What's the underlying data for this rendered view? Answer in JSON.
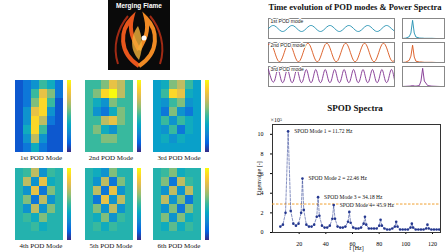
{
  "flame_panel": {
    "title": "Merging Flame"
  },
  "pod_modes": {
    "color_range": [
      0,
      1
    ],
    "tick_labels": false,
    "modes": [
      {
        "label": "1st POD Mode",
        "cells": [
          [
            0.1,
            0.2,
            0.3,
            0.5,
            0.4,
            0.2
          ],
          [
            0.1,
            0.2,
            0.5,
            0.8,
            0.6,
            0.2
          ],
          [
            0.1,
            0.2,
            0.6,
            0.9,
            0.5,
            0.1
          ],
          [
            0.1,
            0.3,
            0.8,
            0.9,
            0.3,
            0.1
          ],
          [
            0.1,
            0.3,
            0.9,
            0.7,
            0.2,
            0.1
          ],
          [
            0.1,
            0.4,
            0.9,
            0.5,
            0.1,
            0.1
          ],
          [
            0.1,
            0.3,
            0.7,
            0.3,
            0.1,
            0.1
          ],
          [
            0.1,
            0.2,
            0.4,
            0.2,
            0.1,
            0.1
          ]
        ]
      },
      {
        "label": "2nd POD Mode",
        "cells": [
          [
            0.5,
            0.5,
            0.6,
            0.8,
            0.7,
            0.5
          ],
          [
            0.5,
            0.6,
            0.9,
            1.0,
            0.7,
            0.5
          ],
          [
            0.5,
            0.4,
            0.3,
            0.6,
            0.5,
            0.5
          ],
          [
            0.5,
            0.3,
            0.2,
            0.4,
            0.6,
            0.5
          ],
          [
            0.5,
            0.5,
            0.7,
            0.8,
            0.6,
            0.5
          ],
          [
            0.5,
            0.6,
            0.4,
            0.3,
            0.5,
            0.5
          ],
          [
            0.5,
            0.5,
            0.6,
            0.6,
            0.5,
            0.5
          ],
          [
            0.5,
            0.5,
            0.5,
            0.5,
            0.5,
            0.5
          ]
        ]
      },
      {
        "label": "3rd POD Mode",
        "cells": [
          [
            0.35,
            0.4,
            0.6,
            0.7,
            0.5,
            0.35
          ],
          [
            0.35,
            0.5,
            0.9,
            0.8,
            0.4,
            0.35
          ],
          [
            0.35,
            0.3,
            0.5,
            0.6,
            0.3,
            0.35
          ],
          [
            0.35,
            0.2,
            0.6,
            0.3,
            0.2,
            0.35
          ],
          [
            0.35,
            0.5,
            0.3,
            0.5,
            0.4,
            0.35
          ],
          [
            0.35,
            0.3,
            0.5,
            0.2,
            0.4,
            0.35
          ],
          [
            0.35,
            0.4,
            0.3,
            0.4,
            0.35,
            0.35
          ],
          [
            0.35,
            0.35,
            0.35,
            0.35,
            0.35,
            0.35
          ]
        ]
      },
      {
        "label": "4th POD Mode",
        "cells": [
          [
            0.45,
            0.5,
            0.7,
            0.3,
            0.5,
            0.45
          ],
          [
            0.45,
            0.7,
            0.3,
            0.8,
            0.4,
            0.45
          ],
          [
            0.45,
            0.3,
            0.8,
            0.2,
            0.6,
            0.45
          ],
          [
            0.45,
            0.6,
            0.2,
            0.7,
            0.3,
            0.45
          ],
          [
            0.45,
            0.3,
            0.7,
            0.3,
            0.6,
            0.45
          ],
          [
            0.45,
            0.5,
            0.4,
            0.6,
            0.45,
            0.45
          ],
          [
            0.45,
            0.45,
            0.5,
            0.4,
            0.45,
            0.45
          ],
          [
            0.45,
            0.45,
            0.45,
            0.45,
            0.45,
            0.45
          ]
        ]
      },
      {
        "label": "5th POD Mode",
        "cells": [
          [
            0.45,
            0.4,
            0.3,
            0.6,
            0.45,
            0.45
          ],
          [
            0.45,
            0.3,
            0.7,
            0.2,
            0.6,
            0.45
          ],
          [
            0.45,
            0.7,
            0.2,
            0.8,
            0.3,
            0.45
          ],
          [
            0.45,
            0.2,
            0.8,
            0.3,
            0.7,
            0.45
          ],
          [
            0.45,
            0.6,
            0.3,
            0.7,
            0.3,
            0.45
          ],
          [
            0.45,
            0.4,
            0.6,
            0.3,
            0.5,
            0.45
          ],
          [
            0.45,
            0.5,
            0.4,
            0.5,
            0.45,
            0.45
          ],
          [
            0.45,
            0.45,
            0.45,
            0.45,
            0.45,
            0.45
          ]
        ]
      },
      {
        "label": "6th POD Mode",
        "cells": [
          [
            0.45,
            0.5,
            0.6,
            0.4,
            0.45,
            0.45
          ],
          [
            0.45,
            0.6,
            0.2,
            0.7,
            0.5,
            0.45
          ],
          [
            0.45,
            0.3,
            0.7,
            0.3,
            0.7,
            0.45
          ],
          [
            0.45,
            0.7,
            0.3,
            0.6,
            0.2,
            0.45
          ],
          [
            0.45,
            0.3,
            0.6,
            0.2,
            0.6,
            0.45
          ],
          [
            0.45,
            0.6,
            0.3,
            0.6,
            0.4,
            0.45
          ],
          [
            0.45,
            0.4,
            0.55,
            0.4,
            0.5,
            0.45
          ],
          [
            0.45,
            0.45,
            0.45,
            0.45,
            0.45,
            0.45
          ]
        ]
      }
    ]
  },
  "time_evolution": {
    "title": "Time evolution of POD modes & Power Spectra",
    "tick_labels": false,
    "xlim": [
      0,
      0.6
    ],
    "ylim": [
      -1,
      1
    ],
    "t": [
      0,
      0.015,
      0.03,
      0.045,
      0.06,
      0.075,
      0.09,
      0.105,
      0.12,
      0.135,
      0.15,
      0.165,
      0.18,
      0.195,
      0.21,
      0.225,
      0.24,
      0.255,
      0.27,
      0.285,
      0.3,
      0.315,
      0.33,
      0.345,
      0.36,
      0.375,
      0.39,
      0.405,
      0.42,
      0.435,
      0.45,
      0.465,
      0.48,
      0.495,
      0.51,
      0.525,
      0.54,
      0.555,
      0.57,
      0.585,
      0.6
    ],
    "spectrum_xlim": [
      0,
      50
    ],
    "spectrum_ylim": [
      0,
      1.1
    ],
    "freq": [
      0,
      4,
      8,
      10,
      12,
      14,
      16,
      20,
      22,
      24,
      26,
      30,
      35,
      40,
      45,
      50
    ],
    "series": [
      {
        "name": "1st POD mode",
        "color": "#1f8fb0",
        "values": [
          0,
          0.26,
          0.26,
          0,
          -0.26,
          -0.26,
          0,
          0.26,
          0.26,
          0,
          -0.26,
          -0.26,
          0,
          0.26,
          0.26,
          0,
          -0.26,
          -0.26,
          0,
          0.26,
          0.26,
          0,
          -0.26,
          -0.26,
          0,
          0.26,
          0.26,
          0,
          -0.26,
          -0.26,
          0,
          0.26,
          0.26,
          0,
          -0.26,
          -0.26,
          0,
          0.26,
          0.26,
          0,
          -0.26
        ],
        "psd": [
          0,
          0.02,
          0.1,
          0.3,
          1,
          0.3,
          0.08,
          0.03,
          0.02,
          0.02,
          0.01,
          0.01,
          0.01,
          0,
          0,
          0
        ]
      },
      {
        "name": "2nd POD mode",
        "color": "#d95319",
        "values": [
          0.8,
          0.8,
          0,
          -0.8,
          -0.8,
          0,
          0.8,
          0.8,
          0,
          -0.8,
          -0.8,
          0,
          0.8,
          0.8,
          0,
          -0.8,
          -0.8,
          0,
          0.8,
          0.8,
          0,
          -0.8,
          -0.8,
          0,
          0.8,
          0.8,
          0,
          -0.8,
          -0.8,
          0,
          0.8,
          0.8,
          0,
          -0.8,
          -0.8,
          0,
          0.8,
          0.8,
          0,
          -0.8,
          -0.8
        ],
        "psd": [
          0,
          0.02,
          0.12,
          0.35,
          0.95,
          0.3,
          0.07,
          0.03,
          0.03,
          0.02,
          0.01,
          0.01,
          0.01,
          0,
          0,
          0
        ]
      },
      {
        "name": "3rd POD mode",
        "color": "#7e2f8e",
        "values": [
          0.7,
          -0.35,
          -0.35,
          0.7,
          -0.35,
          -0.35,
          0.7,
          -0.35,
          -0.35,
          0.7,
          -0.35,
          -0.35,
          0.7,
          -0.35,
          -0.35,
          0.7,
          -0.35,
          -0.35,
          0.7,
          -0.35,
          -0.35,
          0.7,
          -0.35,
          -0.35,
          0.7,
          -0.35,
          -0.35,
          0.7,
          -0.35,
          -0.35,
          0.7,
          -0.35,
          -0.35,
          0.7,
          -0.35,
          -0.35,
          0.7,
          -0.35,
          -0.35,
          0.7,
          -0.35
        ],
        "psd": [
          0,
          0.01,
          0.02,
          0.03,
          0.05,
          0.03,
          0.02,
          0.05,
          0.3,
          1,
          0.3,
          0.05,
          0.02,
          0.01,
          0,
          0
        ]
      }
    ]
  },
  "chart_data": {
    "type": "line",
    "title": "SPOD Spectra",
    "x_label": "f [Hz]",
    "y_label": "Eigenvalue [-]",
    "y_multiplier_label": "×10⁵",
    "color": "#24378f",
    "marker": "dot",
    "line_style": "dashed",
    "xlim": [
      0,
      126
    ],
    "ylim": [
      0,
      11
    ],
    "xticks": [
      20,
      40,
      60,
      80,
      100,
      120
    ],
    "yticks": [
      0,
      2,
      4,
      6,
      8,
      10
    ],
    "grid": false,
    "x": [
      5.86,
      7.81,
      9.77,
      11.72,
      13.67,
      15.63,
      17.58,
      19.53,
      21.48,
      22.46,
      23.44,
      25.39,
      27.34,
      29.3,
      31.25,
      33.2,
      34.18,
      35.16,
      37.11,
      39.06,
      41.02,
      42.97,
      44.92,
      45.9,
      46.88,
      48.83,
      50.78,
      52.73,
      54.69,
      56.64,
      57.62,
      58.59,
      60.55,
      62.5,
      64.45,
      66.41,
      68.36,
      69.34,
      70.31,
      72.27,
      74.22,
      76.17,
      78.13,
      80.08,
      81.05,
      82.03,
      83.98,
      85.94,
      87.89,
      89.84,
      91.8,
      92.77,
      93.75,
      95.7,
      97.66,
      99.61,
      101.56,
      103.52,
      104.49,
      105.47,
      107.42,
      109.38,
      111.33,
      113.28,
      115.23,
      116.21,
      117.19,
      119.14,
      121.09,
      123.05,
      125
    ],
    "values": [
      0.6,
      0.8,
      2.0,
      10.3,
      2.2,
      0.9,
      0.7,
      0.9,
      2.0,
      5.5,
      2.3,
      0.8,
      0.6,
      0.6,
      0.8,
      1.6,
      3.6,
      1.7,
      0.7,
      0.5,
      0.5,
      0.7,
      1.4,
      2.8,
      1.4,
      0.6,
      0.5,
      0.5,
      0.6,
      1.1,
      2.1,
      1.0,
      0.5,
      0.4,
      0.4,
      0.5,
      0.9,
      1.6,
      0.8,
      0.4,
      0.4,
      0.4,
      0.4,
      0.7,
      1.3,
      0.7,
      0.4,
      0.3,
      0.3,
      0.4,
      0.6,
      1.1,
      0.6,
      0.3,
      0.3,
      0.3,
      0.3,
      0.5,
      0.9,
      0.5,
      0.3,
      0.3,
      0.3,
      0.3,
      0.4,
      0.8,
      0.4,
      0.3,
      0.3,
      0.3,
      0.3
    ],
    "reference_line": {
      "value": 2.9,
      "color": "#f0a030",
      "line_style": "dashed"
    },
    "annotations": [
      {
        "label": "SPOD Mode 1 = 11.72 Hz",
        "x": 11.72,
        "y": 10.3
      },
      {
        "label": "SPOD Mode 2 = 22.46 Hz",
        "x": 22.46,
        "y": 5.5
      },
      {
        "label": "SPOD Mode 3 = 34.18 Hz",
        "x": 34.18,
        "y": 3.6
      },
      {
        "label": "SPOD Mode 4= 45.9 Hz",
        "x": 45.9,
        "y": 2.8
      }
    ]
  }
}
